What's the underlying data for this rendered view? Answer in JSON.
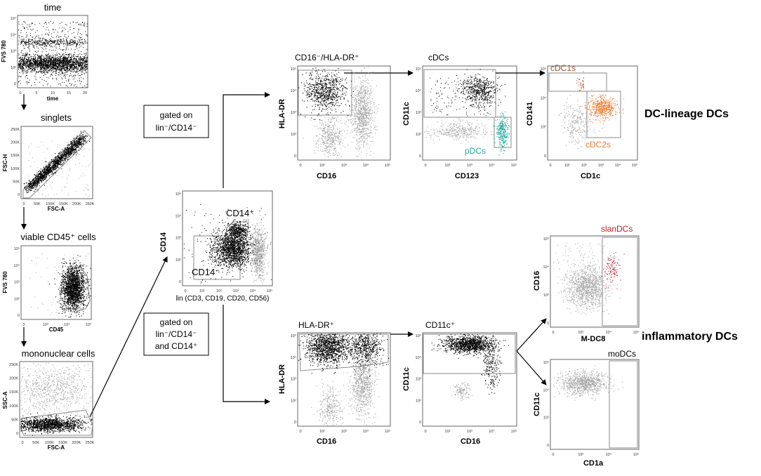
{
  "colors": {
    "dense": "#000000",
    "gray": "#a8a8a8",
    "gate": "#8a8a8a",
    "cdc1": "#a0522d",
    "cdc2": "#f07a2c",
    "pdc": "#26a9a0",
    "slan": "#c0192a",
    "arrow": "#000000"
  },
  "headings": {
    "dc_lineage": "DC-lineage DCs",
    "inflammatory": "inflammatory DCs"
  },
  "gating_notes": {
    "top": [
      "gated on",
      "lin⁻/CD14⁻"
    ],
    "bottom": [
      "gated on",
      "lin⁻/CD14⁻",
      "and CD14⁺"
    ]
  },
  "plots": [
    {
      "id": "time",
      "title": "time",
      "xlabel": "time",
      "ylabel": "FVS 780",
      "xticks": [
        "0",
        "5",
        "10",
        "15",
        "20"
      ],
      "yticks": [
        "10⁵",
        "10⁴",
        "10³",
        "10²",
        "0"
      ]
    },
    {
      "id": "singlets",
      "title": "singlets",
      "xlabel": "FSC-A",
      "ylabel": "FSC-H",
      "xticks": [
        "0",
        "50K",
        "100K",
        "150K",
        "200K",
        "250K"
      ],
      "yticks": [
        "250K",
        "200K",
        "150K",
        "100K",
        "50K",
        "0"
      ]
    },
    {
      "id": "viable",
      "title": "viable CD45⁺ cells",
      "xlabel": "CD45",
      "ylabel": "FVS 780",
      "xticks": [
        "0",
        "10³",
        "10⁴",
        "10⁵"
      ],
      "yticks": [
        "10⁵",
        "10⁴",
        "10³",
        "10²",
        "0"
      ]
    },
    {
      "id": "mononuclear",
      "title": "mononuclear cells",
      "xlabel": "FSC-A",
      "ylabel": "SSC-A",
      "xticks": [
        "0",
        "50K",
        "100K",
        "150K",
        "200K",
        "250K"
      ],
      "yticks": [
        "250K",
        "200K",
        "150K",
        "100K",
        "50K",
        "0"
      ]
    },
    {
      "id": "cd14",
      "title": "",
      "xlabel": "lin (CD3, CD19, CD20, CD56)",
      "ylabel": "CD14",
      "xticks": [
        "0",
        "10¹",
        "10²",
        "10³",
        "10⁴",
        "10⁵"
      ],
      "yticks": [
        "10⁵",
        "10⁴",
        "10³",
        "10²",
        "0"
      ],
      "gate_labels": [
        "CD14⁺",
        "CD14⁻"
      ]
    },
    {
      "id": "hladr_top",
      "title": "CD16⁻/HLA-DR⁺",
      "xlabel": "CD16",
      "ylabel": "HLA-DR",
      "xticks": [
        "0",
        "10²",
        "10³",
        "10⁴",
        "10⁵"
      ],
      "yticks": [
        "10⁵",
        "10⁴",
        "10³",
        "10²",
        "0"
      ]
    },
    {
      "id": "cdcs",
      "title": "cDCs",
      "xlabel": "CD123",
      "ylabel": "CD11c",
      "xticks": [
        "0",
        "10²",
        "10³",
        "10⁴",
        "10⁵"
      ],
      "yticks": [
        "10⁵",
        "10⁴",
        "10³",
        "10²",
        "0"
      ],
      "gate_labels": [
        "pDCs"
      ]
    },
    {
      "id": "cdc_sub",
      "title": "",
      "xlabel": "CD1c",
      "ylabel": "CD141",
      "xticks": [
        "0",
        "10¹",
        "10²",
        "10³",
        "10⁴",
        "10⁵"
      ],
      "yticks": [
        "10⁵",
        "10⁴",
        "10³",
        "0"
      ],
      "gate_labels": [
        "cDC1s",
        "cDC2s"
      ]
    },
    {
      "id": "hladr_bottom",
      "title": "HLA-DR⁺",
      "xlabel": "CD16",
      "ylabel": "HLA-DR",
      "xticks": [
        "0",
        "10²",
        "10³",
        "10⁴",
        "10⁵"
      ],
      "yticks": [
        "10⁵",
        "10⁴",
        "10³",
        "10²",
        "0"
      ]
    },
    {
      "id": "cd11c_pos",
      "title": "CD11c⁺",
      "xlabel": "CD16",
      "ylabel": "CD11c",
      "xticks": [
        "0",
        "10²",
        "10³",
        "10⁴",
        "10⁵"
      ],
      "yticks": [
        "10⁵",
        "10⁴",
        "10³",
        "10²",
        "0"
      ]
    },
    {
      "id": "slan",
      "title": "",
      "xlabel": "M-DC8",
      "ylabel": "CD16",
      "xticks": [
        "0",
        "10³",
        "10⁴",
        "10⁵"
      ],
      "yticks": [
        "10⁵",
        "10⁴",
        "10³",
        "0"
      ],
      "gate_labels": [
        "slanDCs"
      ]
    },
    {
      "id": "mo",
      "title": "",
      "xlabel": "CD1a",
      "ylabel": "CD11c",
      "xticks": [
        "0",
        "10³",
        "10⁴",
        "10⁵"
      ],
      "yticks": [
        "10⁵",
        "10⁴",
        "10³",
        "0"
      ],
      "gate_labels": [
        "moDCs"
      ]
    }
  ]
}
